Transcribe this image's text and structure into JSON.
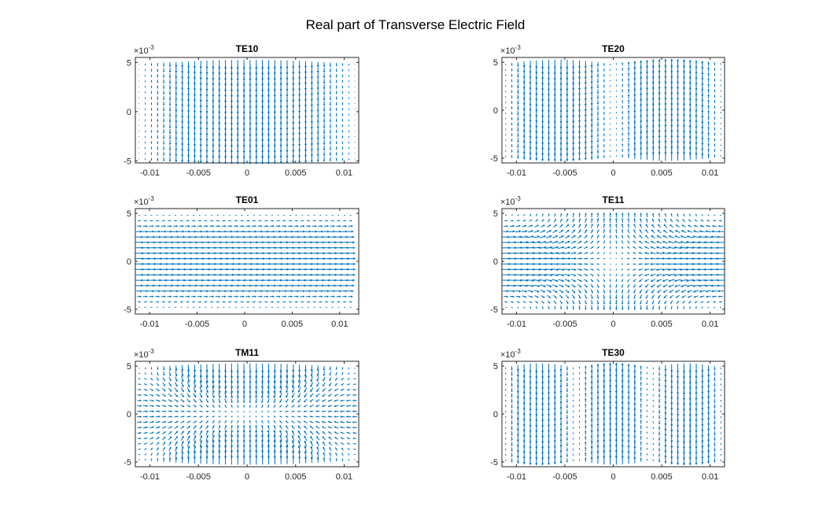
{
  "figure": {
    "title": "Real part of Transverse Electric Field"
  },
  "chart_data": [
    {
      "type": "quiver",
      "mode": "TE10",
      "title": "TE10",
      "x_exponent": "",
      "y_exponent": "×10",
      "y_exponent_power": "-3",
      "xlim": [
        -0.0115,
        0.0115
      ],
      "ylim": [
        -5.2,
        5.5
      ],
      "xticks": [
        -0.01,
        -0.005,
        0,
        0.005,
        0.01
      ],
      "xtick_labels": [
        "-0.01",
        "-0.005",
        "0",
        "0.005",
        "0.01"
      ],
      "yticks": [
        -5,
        0,
        5
      ],
      "ytick_labels": [
        "-5",
        "0",
        "5"
      ],
      "field": {
        "m": 1,
        "n": 0,
        "kind": "TE",
        "width": 0.02286,
        "height": 0.01016
      },
      "color": "#0072BD"
    },
    {
      "type": "quiver",
      "mode": "TE20",
      "title": "TE20",
      "y_exponent": "×10",
      "y_exponent_power": "-3",
      "xlim": [
        -0.0115,
        0.0115
      ],
      "ylim": [
        -5.5,
        5.5
      ],
      "xticks": [
        -0.01,
        -0.005,
        0,
        0.005,
        0.01
      ],
      "xtick_labels": [
        "-0.01",
        "-0.005",
        "0",
        "0.005",
        "0.01"
      ],
      "yticks": [
        -5,
        0,
        5
      ],
      "ytick_labels": [
        "-5",
        "0",
        "5"
      ],
      "field": {
        "m": 2,
        "n": 0,
        "kind": "TE",
        "width": 0.02286,
        "height": 0.01016
      },
      "color": "#0072BD"
    },
    {
      "type": "quiver",
      "mode": "TE01",
      "title": "TE01",
      "y_exponent": "×10",
      "y_exponent_power": "-3",
      "xlim": [
        -0.0115,
        0.012
      ],
      "ylim": [
        -5.5,
        5.5
      ],
      "xticks": [
        -0.01,
        -0.005,
        0,
        0.005,
        0.01
      ],
      "xtick_labels": [
        "-0.01",
        "-0.005",
        "0",
        "0.005",
        "0.01"
      ],
      "yticks": [
        -5,
        0,
        5
      ],
      "ytick_labels": [
        "-5",
        "0",
        "5"
      ],
      "field": {
        "m": 0,
        "n": 1,
        "kind": "TE",
        "width": 0.02286,
        "height": 0.01016
      },
      "color": "#0072BD"
    },
    {
      "type": "quiver",
      "mode": "TE11",
      "title": "TE11",
      "y_exponent": "×10",
      "y_exponent_power": "-3",
      "xlim": [
        -0.0115,
        0.0115
      ],
      "ylim": [
        -5.5,
        5.5
      ],
      "xticks": [
        -0.01,
        -0.005,
        0,
        0.005,
        0.01
      ],
      "xtick_labels": [
        "-0.01",
        "-0.005",
        "0",
        "0.005",
        "0.01"
      ],
      "yticks": [
        -5,
        0,
        5
      ],
      "ytick_labels": [
        "-5",
        "0",
        "5"
      ],
      "field": {
        "m": 1,
        "n": 1,
        "kind": "TE",
        "width": 0.02286,
        "height": 0.01016
      },
      "color": "#0072BD"
    },
    {
      "type": "quiver",
      "mode": "TM11",
      "title": "TM11",
      "y_exponent": "×10",
      "y_exponent_power": "-3",
      "xlim": [
        -0.0115,
        0.0115
      ],
      "ylim": [
        -5.5,
        5.5
      ],
      "xticks": [
        -0.01,
        -0.005,
        0,
        0.005,
        0.01
      ],
      "xtick_labels": [
        "-0.01",
        "-0.005",
        "0",
        "0.005",
        "0.01"
      ],
      "yticks": [
        -5,
        0,
        5
      ],
      "ytick_labels": [
        "-5",
        "0",
        "5"
      ],
      "field": {
        "m": 1,
        "n": 1,
        "kind": "TM",
        "width": 0.02286,
        "height": 0.01016
      },
      "color": "#0072BD"
    },
    {
      "type": "quiver",
      "mode": "TE30",
      "title": "TE30",
      "y_exponent": "×10",
      "y_exponent_power": "-3",
      "xlim": [
        -0.0115,
        0.0115
      ],
      "ylim": [
        -5.5,
        5.5
      ],
      "xticks": [
        -0.01,
        -0.005,
        0,
        0.005,
        0.01
      ],
      "xtick_labels": [
        "-0.01",
        "-0.005",
        "0",
        "0.005",
        "0.01"
      ],
      "yticks": [
        -5,
        0,
        5
      ],
      "ytick_labels": [
        "-5",
        "0",
        "5"
      ],
      "field": {
        "m": 3,
        "n": 0,
        "kind": "TE",
        "width": 0.02286,
        "height": 0.01016
      },
      "color": "#0072BD"
    }
  ]
}
